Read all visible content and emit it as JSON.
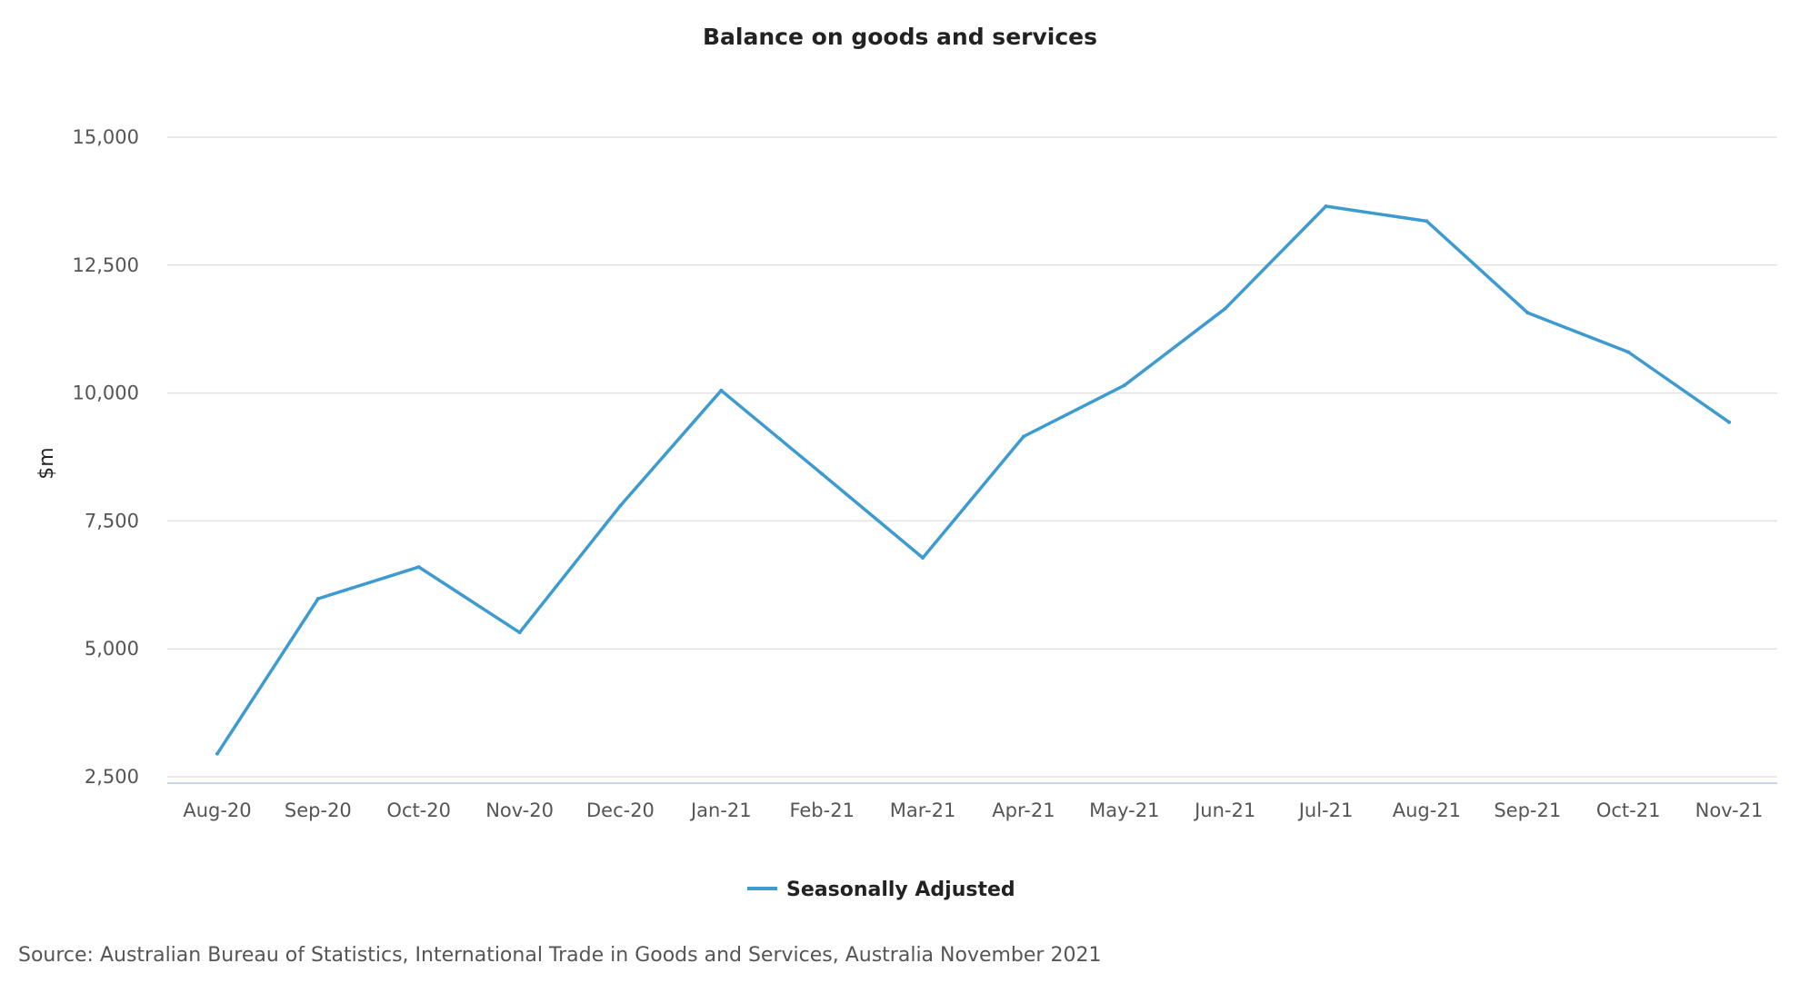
{
  "chart_data": {
    "type": "line",
    "title": "Balance on goods and services",
    "ylabel": "$m",
    "xlabel": "",
    "categories": [
      "Aug-20",
      "Sep-20",
      "Oct-20",
      "Nov-20",
      "Dec-20",
      "Jan-21",
      "Feb-21",
      "Mar-21",
      "Apr-21",
      "May-21",
      "Jun-21",
      "Jul-21",
      "Aug-21",
      "Sep-21",
      "Oct-21",
      "Nov-21"
    ],
    "series": [
      {
        "name": "Seasonally Adjusted",
        "color": "#3d9bd0",
        "values": [
          2950,
          5980,
          6600,
          5320,
          7800,
          10050,
          8420,
          6780,
          9150,
          10150,
          11650,
          13650,
          13360,
          11570,
          10800,
          9430
        ]
      }
    ],
    "ylim": [
      2500,
      15000
    ],
    "yticks": [
      2500,
      5000,
      7500,
      10000,
      12500,
      15000
    ],
    "ytick_labels": [
      "2,500",
      "5,000",
      "7,500",
      "10,000",
      "12,500",
      "15,000"
    ],
    "grid": true,
    "legend_position": "bottom-center"
  },
  "source_note": "Source: Australian Bureau of Statistics, International Trade in Goods and Services, Australia November 2021"
}
